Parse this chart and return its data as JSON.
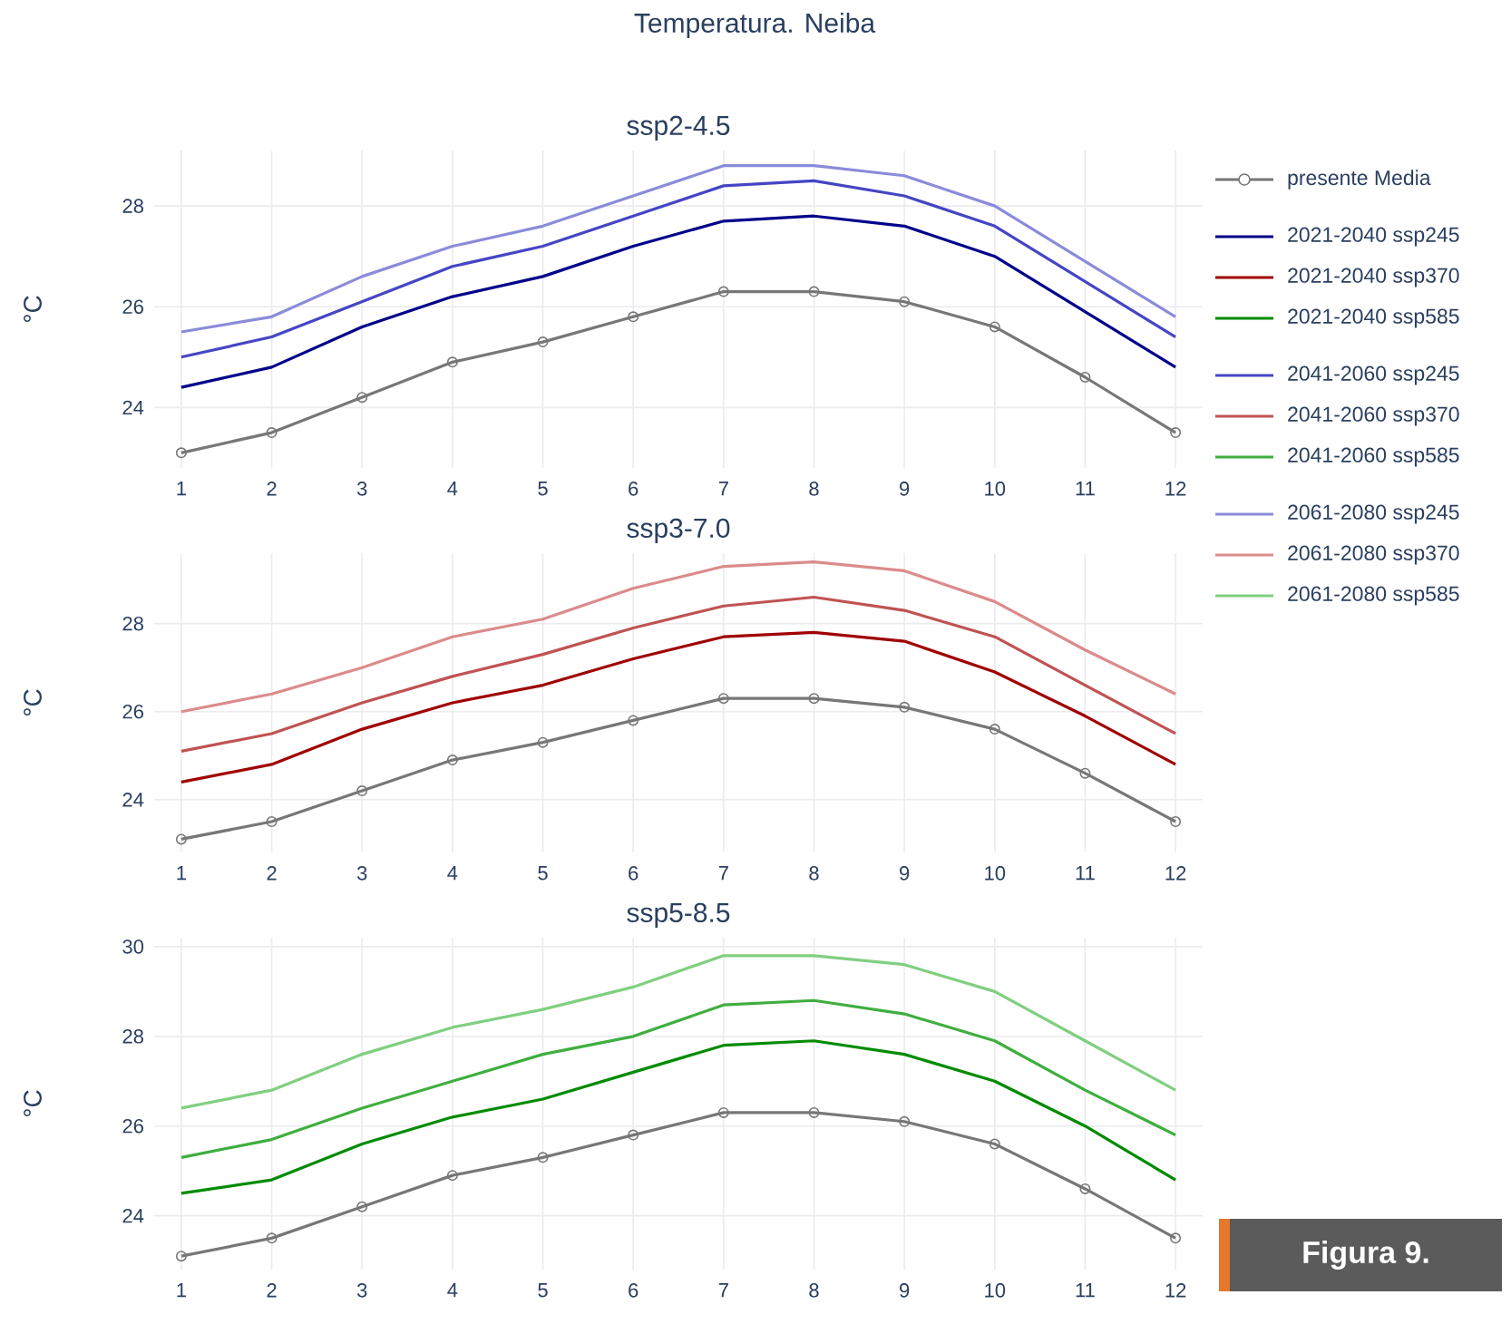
{
  "chart_data": [
    {
      "type": "line",
      "title": "Temperatura. Neiba",
      "subtitle": "ssp2-4.5",
      "ylabel": "°C",
      "x": [
        1,
        2,
        3,
        4,
        5,
        6,
        7,
        8,
        9,
        10,
        11,
        12
      ],
      "xlim": [
        0.7,
        12.3
      ],
      "xticks": [
        1,
        2,
        3,
        4,
        5,
        6,
        7,
        8,
        9,
        10,
        11,
        12
      ],
      "ylim": [
        22.8,
        29.1
      ],
      "yticks": [
        24,
        26,
        28
      ],
      "grid": true,
      "legend": "right",
      "line_style": "solid",
      "series": [
        {
          "name": "presente Media",
          "color": "#777777",
          "marker": "circle",
          "values": [
            23.1,
            23.5,
            24.2,
            24.9,
            25.3,
            25.8,
            26.3,
            26.3,
            26.1,
            25.6,
            24.6,
            23.5
          ]
        },
        {
          "name": "2021-2040 ssp245",
          "color": "#00008b",
          "values": [
            24.4,
            24.8,
            25.6,
            26.2,
            26.6,
            27.2,
            27.7,
            27.8,
            27.6,
            27.0,
            25.9,
            24.8
          ]
        },
        {
          "name": "2041-2060 ssp245",
          "color": "#4545c5",
          "values": [
            25.0,
            25.4,
            26.1,
            26.8,
            27.2,
            27.8,
            28.4,
            28.5,
            28.2,
            27.6,
            26.5,
            25.4
          ]
        },
        {
          "name": "2061-2080 ssp245",
          "color": "#8b8bdb",
          "values": [
            25.5,
            25.8,
            26.6,
            27.2,
            27.6,
            28.2,
            28.8,
            28.8,
            28.6,
            28.0,
            26.9,
            25.8
          ]
        }
      ]
    },
    {
      "type": "line",
      "subtitle": "ssp3-7.0",
      "ylabel": "°C",
      "x": [
        1,
        2,
        3,
        4,
        5,
        6,
        7,
        8,
        9,
        10,
        11,
        12
      ],
      "xlim": [
        0.7,
        12.3
      ],
      "xticks": [
        1,
        2,
        3,
        4,
        5,
        6,
        7,
        8,
        9,
        10,
        11,
        12
      ],
      "ylim": [
        22.8,
        29.6
      ],
      "yticks": [
        24,
        26,
        28
      ],
      "grid": true,
      "legend": "right",
      "line_style": "solid",
      "series": [
        {
          "color": "#777777",
          "marker": "circle",
          "values": [
            23.1,
            23.5,
            24.2,
            24.9,
            25.3,
            25.8,
            26.3,
            26.3,
            26.1,
            25.6,
            24.6,
            23.5
          ]
        },
        {
          "name": "2021-2040 ssp370",
          "color": "#a00000",
          "values": [
            24.4,
            24.8,
            25.6,
            26.2,
            26.6,
            27.2,
            27.7,
            27.8,
            27.6,
            26.9,
            25.9,
            24.8
          ]
        },
        {
          "name": "2041-2060 ssp370",
          "color": "#c05252",
          "values": [
            25.1,
            25.5,
            26.2,
            26.8,
            27.3,
            27.9,
            28.4,
            28.6,
            28.3,
            27.7,
            26.6,
            25.5
          ]
        },
        {
          "name": "2061-2080 ssp370",
          "color": "#db8b8b",
          "values": [
            26.0,
            26.4,
            27.0,
            27.7,
            28.1,
            28.8,
            29.3,
            29.4,
            29.2,
            28.5,
            27.4,
            26.4
          ]
        }
      ]
    },
    {
      "type": "line",
      "subtitle": "ssp5-8.5",
      "ylabel": "°C",
      "x": [
        1,
        2,
        3,
        4,
        5,
        6,
        7,
        8,
        9,
        10,
        11,
        12
      ],
      "xlim": [
        0.7,
        12.3
      ],
      "xticks": [
        1,
        2,
        3,
        4,
        5,
        6,
        7,
        8,
        9,
        10,
        11,
        12
      ],
      "ylim": [
        22.8,
        30.2
      ],
      "yticks": [
        24,
        26,
        28,
        30
      ],
      "grid": true,
      "legend": "right",
      "line_style": "solid",
      "annotations": [
        "Figura 9."
      ],
      "series": [
        {
          "color": "#777777",
          "marker": "circle",
          "values": [
            23.1,
            23.5,
            24.2,
            24.9,
            25.3,
            25.8,
            26.3,
            26.3,
            26.1,
            25.6,
            24.6,
            23.5
          ]
        },
        {
          "name": "2021-2040 ssp585",
          "color": "#008b00",
          "values": [
            24.5,
            24.8,
            25.6,
            26.2,
            26.6,
            27.2,
            27.8,
            27.9,
            27.6,
            27.0,
            26.0,
            24.8
          ]
        },
        {
          "name": "2041-2060 ssp585",
          "color": "#3fae3f",
          "values": [
            25.3,
            25.7,
            26.4,
            27.0,
            27.6,
            28.0,
            28.7,
            28.8,
            28.5,
            27.9,
            26.8,
            25.8
          ]
        },
        {
          "name": "2061-2080 ssp585",
          "color": "#80cf80",
          "values": [
            26.4,
            26.8,
            27.6,
            28.2,
            28.6,
            29.1,
            29.8,
            29.8,
            29.6,
            29.0,
            27.9,
            26.8
          ]
        }
      ]
    }
  ]
}
